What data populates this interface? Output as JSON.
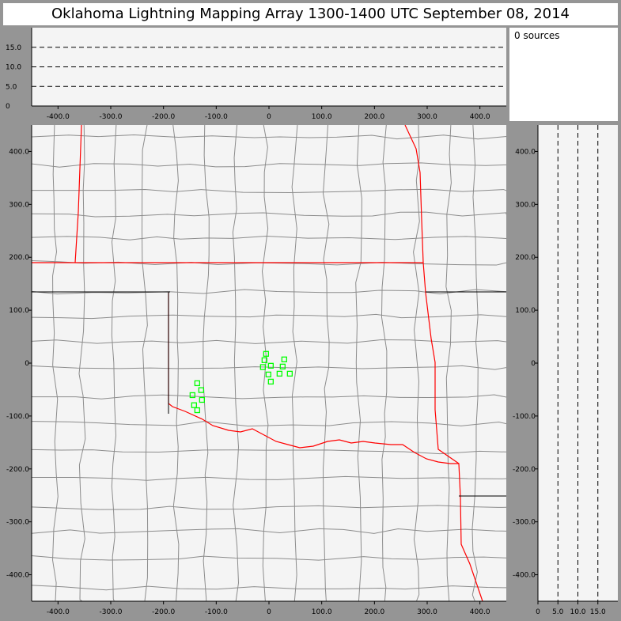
{
  "title": "Oklahoma Lightning Mapping Array   1300-1400 UTC  September 08, 2014",
  "source_count_label": "0 sources",
  "colors": {
    "background": "#959595",
    "plot_bg": "#f4f4f4",
    "county_line": "#8c8c8c",
    "state_border": "#ff0000",
    "station": "#00ff00"
  },
  "chart_data": [
    {
      "type": "line",
      "panel": "altitude-vs-east-west",
      "xlim": [
        -450,
        450
      ],
      "ylim": [
        0,
        20
      ],
      "xticks": [
        "-400.0",
        "-300.0",
        "-200.0",
        "-100.0",
        "0",
        "100.0",
        "200.0",
        "300.0",
        "400.0"
      ],
      "xtick_values": [
        -400,
        -300,
        -200,
        -100,
        0,
        100,
        200,
        300,
        400
      ],
      "yticks": [
        "0",
        "5.0",
        "10.0",
        "15.0"
      ],
      "ytick_values": [
        0,
        5,
        10,
        15
      ],
      "grid": "dashed horizontal at 5, 10, 15",
      "series": []
    },
    {
      "type": "scatter",
      "panel": "plan-view-map",
      "xlim": [
        -450,
        450
      ],
      "ylim": [
        -450,
        450
      ],
      "xticks": [
        "-400.0",
        "-300.0",
        "-200.0",
        "-100.0",
        "0",
        "100.0",
        "200.0",
        "300.0",
        "400.0"
      ],
      "xtick_values": [
        -400,
        -300,
        -200,
        -100,
        0,
        100,
        200,
        300,
        400
      ],
      "yticks": [
        "-400.0",
        "-300.0",
        "-200.0",
        "-100.0",
        "0",
        "100.0",
        "200.0",
        "300.0",
        "400.0"
      ],
      "ytick_values": [
        -400,
        -300,
        -200,
        -100,
        0,
        100,
        200,
        300,
        400
      ],
      "stations": {
        "marker": "open-square",
        "x": [
          -5.5,
          -8.5,
          -11.5,
          3.5,
          29,
          26,
          -1,
          20,
          39.5,
          3.5,
          -136,
          -128.5,
          -145,
          -127,
          -142,
          -136
        ],
        "y": [
          17.5,
          5.5,
          -7.5,
          -5,
          7,
          -6.5,
          -21.5,
          -20,
          -20,
          -35,
          -38,
          -51,
          -60.5,
          -69.5,
          -79.5,
          -89
        ]
      }
    },
    {
      "type": "line",
      "panel": "north-south-vs-altitude",
      "xlim": [
        0,
        20
      ],
      "ylim": [
        -450,
        450
      ],
      "xticks": [
        "0",
        "5.0",
        "10.0",
        "15.0"
      ],
      "xtick_values": [
        0,
        5,
        10,
        15
      ],
      "yticks": [
        "-400.0",
        "-300.0",
        "-200.0",
        "-100.0",
        "0",
        "100.0",
        "200.0",
        "300.0",
        "400.0"
      ],
      "ytick_values": [
        -400,
        -300,
        -200,
        -100,
        0,
        100,
        200,
        300,
        400
      ],
      "grid": "dashed vertical at 5, 10, 15",
      "series": []
    }
  ]
}
